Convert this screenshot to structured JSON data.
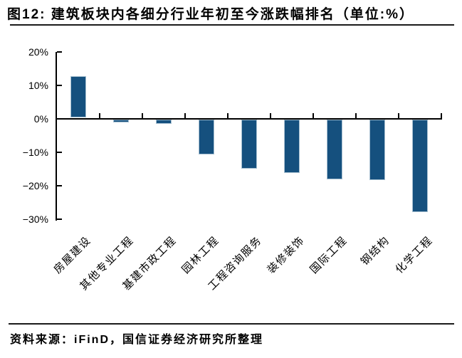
{
  "figure": {
    "title": "图12: 建筑板块内各细分行业年初至今涨跌幅排名（单位:%）",
    "source": "资料来源：iFinD，国信证券经济研究所整理"
  },
  "chart_data": {
    "type": "bar",
    "title": "图12: 建筑板块内各细分行业年初至今涨跌幅排名（单位:%）",
    "categories": [
      "房屋建设",
      "其他专业工程",
      "基建市政工程",
      "园林工程",
      "工程咨询服务",
      "装修装饰",
      "国际工程",
      "钢结构",
      "化学工程"
    ],
    "values": [
      12.7,
      -1.1,
      -1.7,
      -10.8,
      -14.9,
      -16.2,
      -18.1,
      -18.4,
      -28.0
    ],
    "unit": "%",
    "ylabel": "",
    "xlabel": "",
    "ylim": [
      -30,
      20
    ],
    "ytick_values": [
      20,
      10,
      0,
      -10,
      -20,
      -30
    ],
    "ytick_labels": [
      "20%",
      "10%",
      "0%",
      "−10%",
      "−20%",
      "−30%"
    ],
    "grid": false,
    "legend": false,
    "bar_color": "#15507E",
    "bar_border_color": "#A6BFD0",
    "axis_color": "#000000",
    "text_color": "#000000"
  }
}
